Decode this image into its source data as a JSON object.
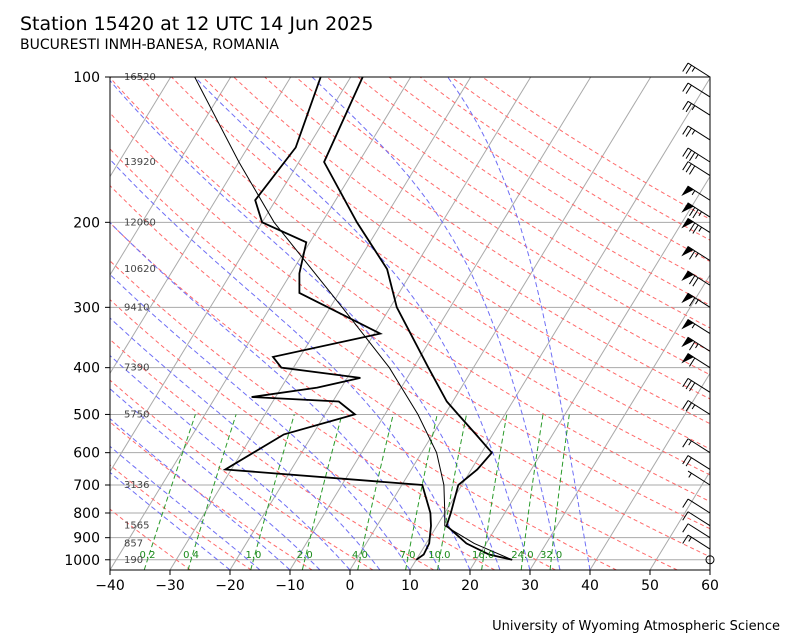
{
  "title": "Station 15420 at 12 UTC 14 Jun 2025",
  "subtitle": "BUCURESTI INMH-BANESA, ROMANIA",
  "credit": "University of Wyoming Atmospheric Science",
  "chart_data": {
    "type": "skew-t log-p",
    "xlabel": "",
    "ylabel": "",
    "x_ticks": [
      -40,
      -30,
      -20,
      -10,
      0,
      10,
      20,
      30,
      40,
      50,
      60
    ],
    "y_ticks": [
      100,
      200,
      300,
      400,
      500,
      600,
      700,
      800,
      900,
      1000
    ],
    "xlim": [
      -40,
      60
    ],
    "ylim": [
      1050,
      100
    ],
    "height_labels": [
      {
        "p": 100,
        "text": "16520"
      },
      {
        "p": 150,
        "text": "13920"
      },
      {
        "p": 200,
        "text": "12060"
      },
      {
        "p": 250,
        "text": "10620"
      },
      {
        "p": 300,
        "text": "9410"
      },
      {
        "p": 400,
        "text": "7390"
      },
      {
        "p": 500,
        "text": "5750"
      },
      {
        "p": 700,
        "text": "3136"
      },
      {
        "p": 850,
        "text": "1565"
      },
      {
        "p": 925,
        "text": "857"
      },
      {
        "p": 1000,
        "text": "190"
      }
    ],
    "mixing_ratio_labels": [
      "0.2",
      "0.4",
      "1.0",
      "2.0",
      "4.0",
      "7.0",
      "10.0",
      "16.0",
      "24.0",
      "32.0"
    ],
    "colors": {
      "temperature": "#000000",
      "dewpoint": "#000000",
      "parcel": "#000000",
      "isotherm": "#aaaaaa",
      "isobar": "#aaaaaa",
      "dry_adiabat": "#ff6a6a",
      "moist_adiabat": "#6f6ff5",
      "mixing_ratio": "#2a9a2a"
    },
    "temperature": [
      {
        "p": 1000,
        "t": 26.0
      },
      {
        "p": 975,
        "t": 21.6
      },
      {
        "p": 925,
        "t": 16.7
      },
      {
        "p": 850,
        "t": 11.6
      },
      {
        "p": 800,
        "t": 11.0
      },
      {
        "p": 700,
        "t": 9.4
      },
      {
        "p": 650,
        "t": 11.0
      },
      {
        "p": 600,
        "t": 11.7
      },
      {
        "p": 550,
        "t": 7.2
      },
      {
        "p": 500,
        "t": 2.2
      },
      {
        "p": 470,
        "t": -1.0
      },
      {
        "p": 400,
        "t": -7.5
      },
      {
        "p": 300,
        "t": -18.9
      },
      {
        "p": 250,
        "t": -24.4
      },
      {
        "p": 200,
        "t": -34.2
      },
      {
        "p": 150,
        "t": -45.8
      },
      {
        "p": 100,
        "t": -48.0
      }
    ],
    "dewpoint": [
      {
        "p": 1000,
        "t": 10.0
      },
      {
        "p": 975,
        "t": 10.7
      },
      {
        "p": 925,
        "t": 10.5
      },
      {
        "p": 850,
        "t": 9.0
      },
      {
        "p": 800,
        "t": 7.6
      },
      {
        "p": 700,
        "t": 3.4
      },
      {
        "p": 650,
        "t": -31.0
      },
      {
        "p": 550,
        "t": -24.8
      },
      {
        "p": 500,
        "t": -15.0
      },
      {
        "p": 470,
        "t": -19.0
      },
      {
        "p": 460,
        "t": -34.0
      },
      {
        "p": 440,
        "t": -24.0
      },
      {
        "p": 420,
        "t": -17.8
      },
      {
        "p": 400,
        "t": -32.0
      },
      {
        "p": 380,
        "t": -34.5
      },
      {
        "p": 340,
        "t": -19.0
      },
      {
        "p": 280,
        "t": -36.6
      },
      {
        "p": 255,
        "t": -38.6
      },
      {
        "p": 220,
        "t": -40.6
      },
      {
        "p": 200,
        "t": -50.0
      },
      {
        "p": 180,
        "t": -53.4
      },
      {
        "p": 140,
        "t": -52.0
      },
      {
        "p": 100,
        "t": -55.0
      }
    ],
    "parcel": [
      {
        "p": 1000,
        "t": 26.0
      },
      {
        "p": 925,
        "t": 18.0
      },
      {
        "p": 850,
        "t": 11.3
      },
      {
        "p": 800,
        "t": 10.0
      },
      {
        "p": 700,
        "t": 7.0
      },
      {
        "p": 600,
        "t": 2.5
      },
      {
        "p": 500,
        "t": -4.5
      },
      {
        "p": 400,
        "t": -14.0
      },
      {
        "p": 300,
        "t": -28.0
      },
      {
        "p": 200,
        "t": -48.0
      },
      {
        "p": 150,
        "t": -60.0
      },
      {
        "p": 100,
        "t": -76.0
      }
    ],
    "wind_barbs": [
      {
        "p": 1000,
        "calm": true
      },
      {
        "p": 950,
        "speed_kt": 15
      },
      {
        "p": 900,
        "speed_kt": 10
      },
      {
        "p": 850,
        "speed_kt": 10
      },
      {
        "p": 800,
        "speed_kt": 10
      },
      {
        "p": 700,
        "speed_kt": 5
      },
      {
        "p": 650,
        "speed_kt": 20
      },
      {
        "p": 600,
        "speed_kt": 15
      },
      {
        "p": 500,
        "speed_kt": 25
      },
      {
        "p": 450,
        "speed_kt": 30
      },
      {
        "p": 400,
        "speed_kt": 60
      },
      {
        "p": 370,
        "speed_kt": 65
      },
      {
        "p": 340,
        "speed_kt": 55
      },
      {
        "p": 300,
        "speed_kt": 65
      },
      {
        "p": 270,
        "speed_kt": 70
      },
      {
        "p": 240,
        "speed_kt": 65
      },
      {
        "p": 210,
        "speed_kt": 75
      },
      {
        "p": 195,
        "speed_kt": 75
      },
      {
        "p": 180,
        "speed_kt": 55
      },
      {
        "p": 160,
        "speed_kt": 30
      },
      {
        "p": 150,
        "speed_kt": 35
      },
      {
        "p": 135,
        "speed_kt": 25
      },
      {
        "p": 120,
        "speed_kt": 25
      },
      {
        "p": 110,
        "speed_kt": 20
      },
      {
        "p": 100,
        "speed_kt": 25
      }
    ]
  }
}
